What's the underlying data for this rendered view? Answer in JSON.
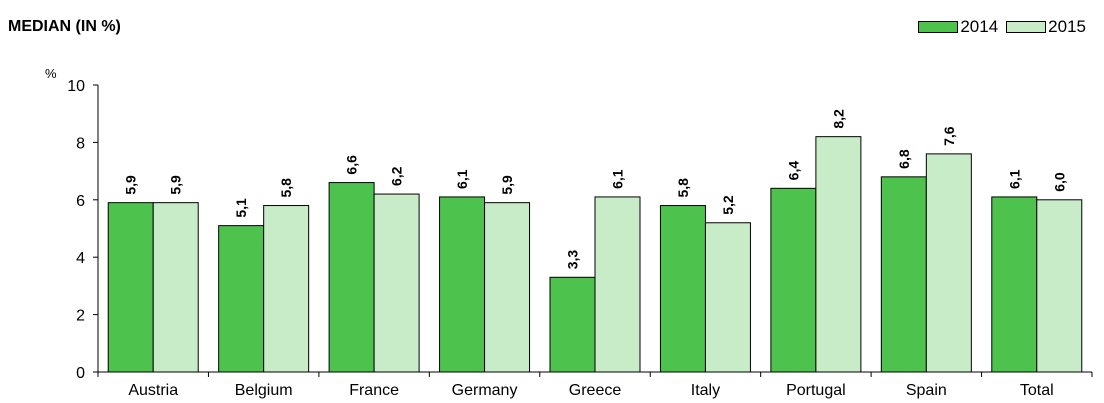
{
  "chart_data": {
    "type": "bar",
    "title": "MEDIAN (IN %)",
    "ylabel": "%",
    "xlabel": "",
    "ylim": [
      0,
      10
    ],
    "yticks": [
      0,
      2,
      4,
      6,
      8,
      10
    ],
    "grid": false,
    "legend_position": "top-right",
    "categories": [
      "Austria",
      "Belgium",
      "France",
      "Germany",
      "Greece",
      "Italy",
      "Portugal",
      "Spain",
      "Total"
    ],
    "series": [
      {
        "name": "2014",
        "color": "#4dc34d",
        "values": [
          5.9,
          5.1,
          6.6,
          6.1,
          3.3,
          5.8,
          6.4,
          6.8,
          6.1
        ],
        "labels": [
          "5,9",
          "5,1",
          "6,6",
          "6,1",
          "3,3",
          "5,8",
          "6,4",
          "6,8",
          "6,1"
        ]
      },
      {
        "name": "2015",
        "color": "#c8ebc8",
        "values": [
          5.9,
          5.8,
          6.2,
          5.9,
          6.1,
          5.2,
          8.2,
          7.6,
          6.0
        ],
        "labels": [
          "5,9",
          "5,8",
          "6,2",
          "5,9",
          "6,1",
          "5,2",
          "8,2",
          "7,6",
          "6,0"
        ]
      }
    ]
  }
}
